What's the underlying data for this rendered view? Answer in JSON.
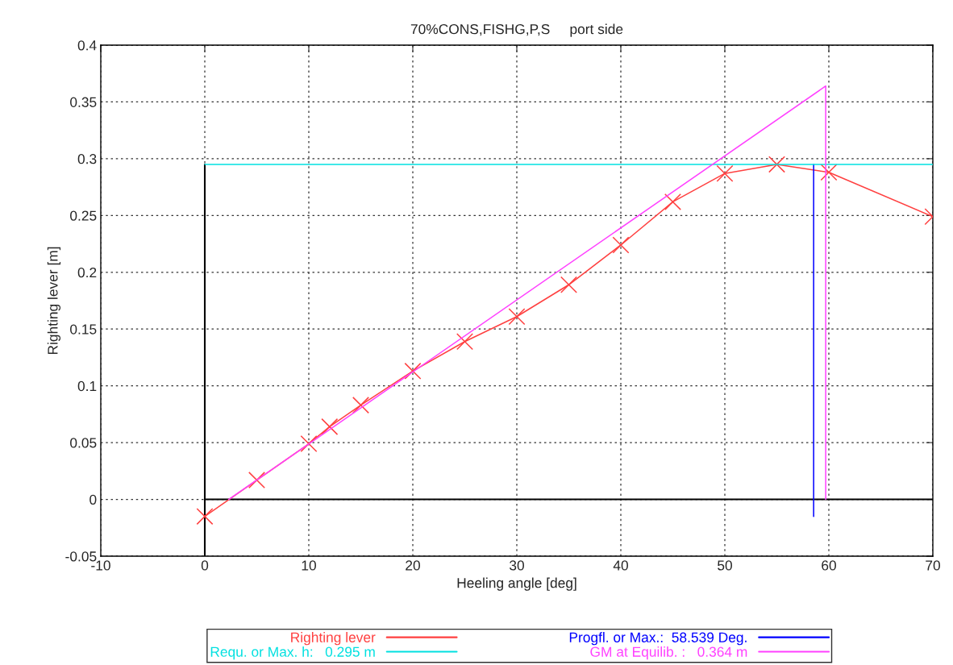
{
  "chart_data": {
    "type": "line",
    "title": "70%CONS,FISHG,P,S     port side",
    "xlabel": "Heeling angle [deg]",
    "ylabel": "Righting lever [m]",
    "xlim": [
      -10,
      70
    ],
    "xticks": [
      -10,
      0,
      10,
      20,
      30,
      40,
      50,
      60,
      70
    ],
    "ylim": [
      -0.05,
      0.4
    ],
    "yticks": [
      -0.05,
      0,
      0.05,
      0.1,
      0.15,
      0.2,
      0.25,
      0.3,
      0.35,
      0.4
    ],
    "grid": true,
    "legend": "bottom",
    "series": [
      {
        "color": "#000000",
        "marker": "none",
        "x": [
          0,
          0
        ],
        "values": [
          -0.05,
          0.295
        ]
      },
      {
        "color": "#000000",
        "marker": "none",
        "x": [
          0,
          70
        ],
        "values": [
          0,
          0
        ]
      },
      {
        "name": "Righting lever",
        "color": "#ff4040",
        "marker": "cross",
        "x": [
          0,
          5,
          10,
          12,
          15,
          20,
          25,
          30,
          35,
          40,
          45,
          50,
          55,
          60,
          70
        ],
        "values": [
          -0.015,
          0.017,
          0.049,
          0.064,
          0.083,
          0.113,
          0.139,
          0.161,
          0.189,
          0.224,
          0.262,
          0.287,
          0.295,
          0.288,
          0.249
        ]
      },
      {
        "name": "Progfl. or Max.:  58.539 Deg.",
        "color": "#0000ff",
        "marker": "none",
        "x": [
          58.539,
          58.539
        ],
        "values": [
          -0.015,
          0.295
        ]
      },
      {
        "name": "Requ. or Max. h:   0.295 m",
        "color": "#00e0e0",
        "marker": "none",
        "x": [
          0,
          70
        ],
        "values": [
          0.295,
          0.295
        ]
      },
      {
        "name": "GM at Equilib. :   0.364 m",
        "color": "#ff40ff",
        "marker": "none",
        "x": [
          2.3,
          59.7,
          59.7
        ],
        "values": [
          0,
          0.364,
          0
        ]
      }
    ]
  }
}
